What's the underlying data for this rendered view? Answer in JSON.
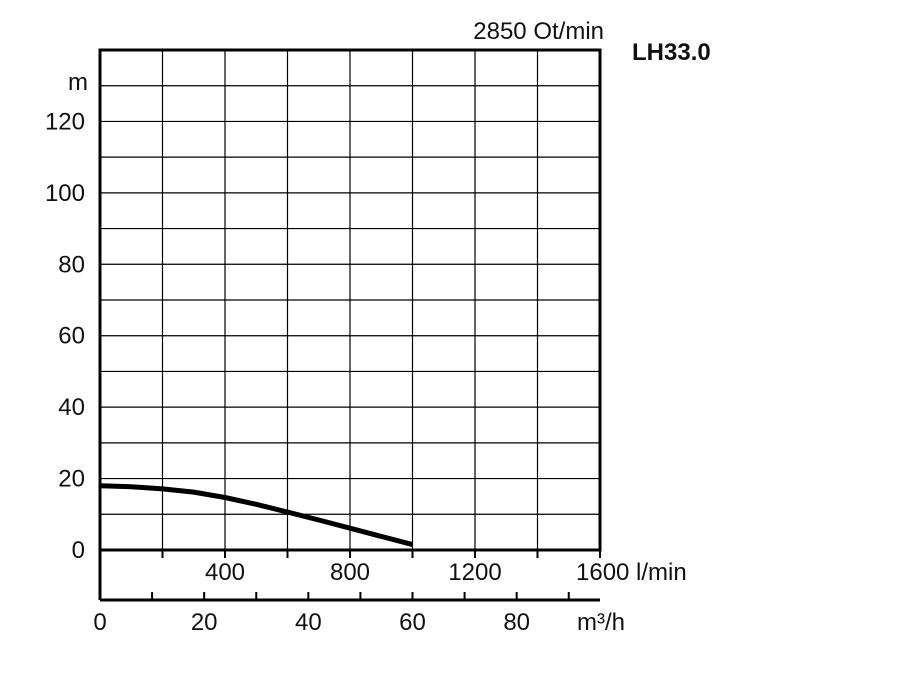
{
  "chart_data": {
    "type": "line",
    "title": "LH33.0",
    "subtitle": "2850 Ot/min",
    "ylabel": "m",
    "y_ticks": [
      "0",
      "20",
      "40",
      "60",
      "80",
      "100",
      "120"
    ],
    "ylim": [
      0,
      140
    ],
    "x_flow_lmin": {
      "ticks": [
        "400",
        "800",
        "1200"
      ],
      "last_tick": "1600 l/min",
      "range": [
        0,
        1600
      ]
    },
    "x_flow_m3h": {
      "ticks": [
        "0",
        "20",
        "40",
        "60",
        "80"
      ],
      "unit": "m³/h",
      "range": [
        0,
        96
      ]
    },
    "grid": true,
    "series": [
      {
        "x": [
          0,
          100,
          200,
          300,
          400,
          500,
          600,
          700,
          800,
          900,
          1000
        ],
        "y": [
          18,
          17.7,
          17.1,
          16.2,
          14.7,
          12.8,
          10.6,
          8.4,
          6.1,
          3.8,
          1.5
        ]
      }
    ]
  },
  "colors": {
    "axis": "#000000",
    "grid": "#000000",
    "curve": "#000000",
    "text": "#111111"
  }
}
